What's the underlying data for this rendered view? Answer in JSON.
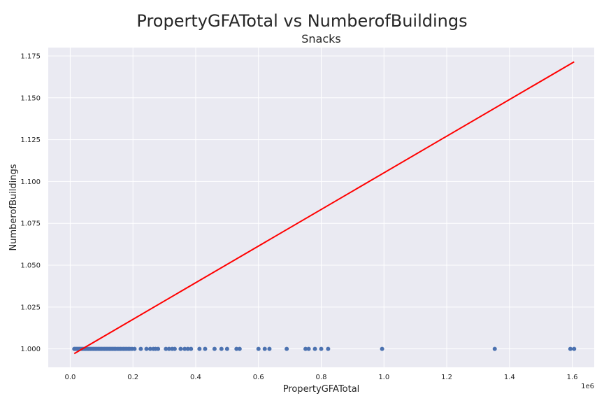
{
  "figure": {
    "suptitle": "PropertyGFATotal vs NumberofBuildings",
    "subtitle": "Snacks"
  },
  "colors": {
    "background": "#eaeaf2",
    "grid": "#ffffff",
    "points": "#4c72b0",
    "fit_line": "#ff0000"
  },
  "chart_data": {
    "type": "scatter",
    "title": "Snacks",
    "xlabel": "PropertyGFATotal",
    "ylabel": "NumberofBuildings",
    "x_offset_label": "1e6",
    "xlim": [
      -0.07,
      1.67
    ],
    "ylim": [
      0.989,
      1.18
    ],
    "x_ticks": [
      0.0,
      0.2,
      0.4,
      0.6,
      0.8,
      1.0,
      1.2,
      1.4,
      1.6
    ],
    "x_tick_labels": [
      "0.0",
      "0.2",
      "0.4",
      "0.6",
      "0.8",
      "1.0",
      "1.2",
      "1.4",
      "1.6"
    ],
    "y_ticks": [
      1.0,
      1.025,
      1.05,
      1.075,
      1.1,
      1.125,
      1.15,
      1.175
    ],
    "y_tick_labels": [
      "1.000",
      "1.025",
      "1.050",
      "1.075",
      "1.100",
      "1.125",
      "1.150",
      "1.175"
    ],
    "grid": true,
    "points": {
      "x": [
        0.013,
        0.017,
        0.021,
        0.025,
        0.029,
        0.033,
        0.037,
        0.041,
        0.045,
        0.049,
        0.053,
        0.057,
        0.061,
        0.065,
        0.069,
        0.073,
        0.077,
        0.081,
        0.085,
        0.089,
        0.093,
        0.097,
        0.101,
        0.105,
        0.109,
        0.113,
        0.117,
        0.121,
        0.125,
        0.129,
        0.133,
        0.137,
        0.141,
        0.145,
        0.15,
        0.155,
        0.16,
        0.165,
        0.17,
        0.175,
        0.18,
        0.185,
        0.19,
        0.197,
        0.205,
        0.225,
        0.243,
        0.255,
        0.265,
        0.272,
        0.28,
        0.305,
        0.315,
        0.325,
        0.333,
        0.352,
        0.365,
        0.375,
        0.385,
        0.412,
        0.43,
        0.46,
        0.482,
        0.5,
        0.53,
        0.54,
        0.6,
        0.62,
        0.635,
        0.69,
        0.75,
        0.76,
        0.78,
        0.8,
        0.822,
        0.994,
        1.353,
        1.594,
        1.606
      ],
      "y": [
        1,
        1,
        1,
        1,
        1,
        1,
        1,
        1,
        1,
        1,
        1,
        1,
        1,
        1,
        1,
        1,
        1,
        1,
        1,
        1,
        1,
        1,
        1,
        1,
        1,
        1,
        1,
        1,
        1,
        1,
        1,
        1,
        1,
        1,
        1,
        1,
        1,
        1,
        1,
        1,
        1,
        1,
        1,
        1,
        1,
        1,
        1,
        1,
        1,
        1,
        1,
        1,
        1,
        1,
        1,
        1,
        1,
        1,
        1,
        1,
        1,
        1,
        1,
        1,
        1,
        1,
        1,
        1,
        1,
        1,
        1,
        1,
        1,
        1,
        1,
        1,
        1,
        1,
        1
      ]
    },
    "fit_line": {
      "x": [
        0.013,
        1.606
      ],
      "y": [
        0.9972,
        1.1715
      ]
    }
  }
}
